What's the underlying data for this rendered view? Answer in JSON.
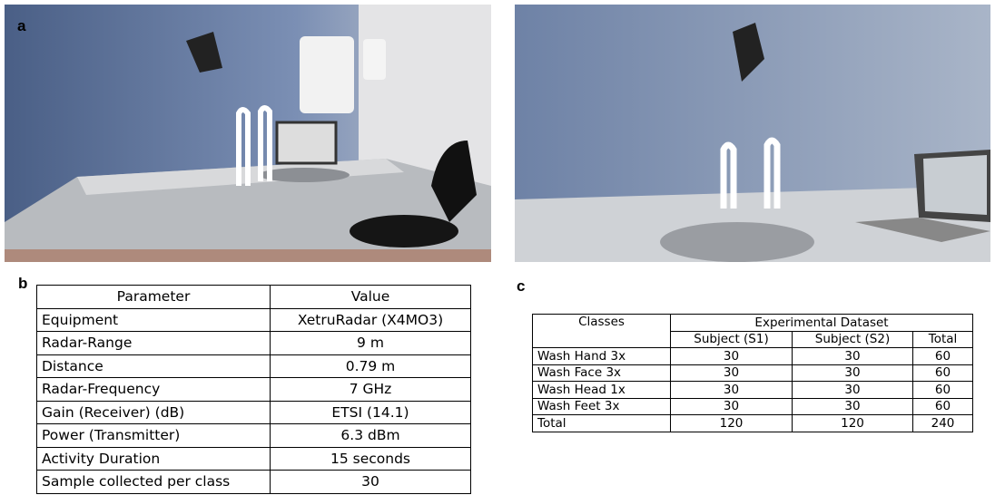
{
  "panels": {
    "a": "a",
    "b": "b",
    "c": "c"
  },
  "table_b": {
    "header": [
      "Parameter",
      "Value"
    ],
    "rows": [
      [
        "Equipment",
        "XetruRadar (X4MO3)"
      ],
      [
        "Radar-Range",
        "9 m"
      ],
      [
        "Distance",
        "0.79 m"
      ],
      [
        "Radar-Frequency",
        "7 GHz"
      ],
      [
        "Gain (Receiver) (dB)",
        "ETSI (14.1)"
      ],
      [
        "Power (Transmitter)",
        "6.3 dBm"
      ],
      [
        "Activity Duration",
        "15 seconds"
      ],
      [
        "Sample collected per class",
        "30"
      ]
    ]
  },
  "table_c": {
    "header": [
      "Classes",
      "Experimental Dataset"
    ],
    "subheader": [
      "Subject (S1)",
      "Subject (S2)",
      "Total"
    ],
    "rows": [
      [
        "Wash Hand 3x",
        30,
        30,
        60
      ],
      [
        "Wash Face 3x",
        30,
        30,
        60
      ],
      [
        "Wash Head 1x",
        30,
        30,
        60
      ],
      [
        "Wash Feet 3x",
        30,
        30,
        60
      ],
      [
        "Total",
        120,
        120,
        240
      ]
    ]
  }
}
